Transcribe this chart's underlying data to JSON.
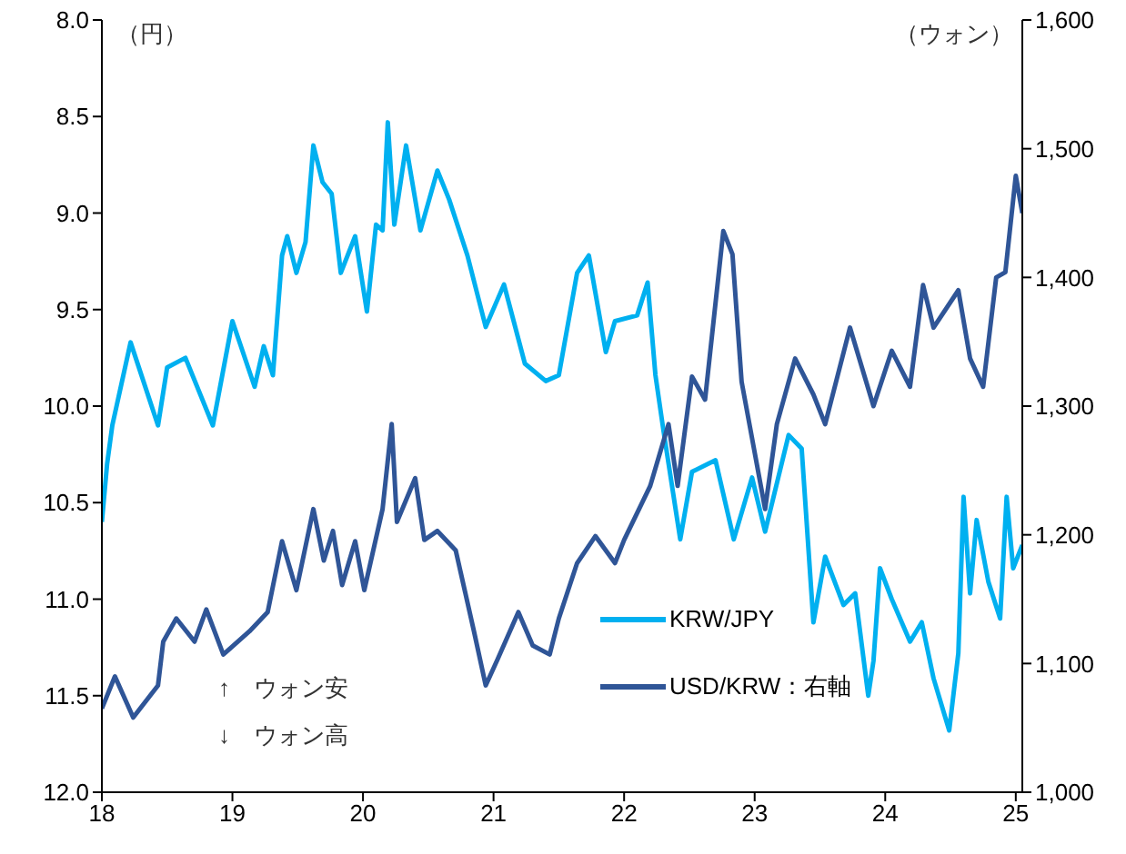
{
  "chart_data": {
    "type": "line",
    "ylabel": "（円）",
    "y2label": "（ウォン）",
    "xlim": [
      18,
      25.05
    ],
    "xticks": [
      18,
      19,
      20,
      21,
      22,
      23,
      24,
      25
    ],
    "ylim": [
      12,
      8
    ],
    "yticks": [
      {
        "value": 8,
        "label": "8.0"
      },
      {
        "value": 8.5,
        "label": "8.5"
      },
      {
        "value": 9,
        "label": "9.0"
      },
      {
        "value": 9.5,
        "label": "9.5"
      },
      {
        "value": 10,
        "label": "10.0"
      },
      {
        "value": 10.5,
        "label": "10.5"
      },
      {
        "value": 11,
        "label": "11.0"
      },
      {
        "value": 11.5,
        "label": "11.5"
      },
      {
        "value": 12,
        "label": "12.0"
      }
    ],
    "y2lim": [
      1000,
      1600
    ],
    "y2ticks": [
      {
        "value": 1000,
        "label": "1,000"
      },
      {
        "value": 1100,
        "label": "1,100"
      },
      {
        "value": 1200,
        "label": "1,200"
      },
      {
        "value": 1300,
        "label": "1,300"
      },
      {
        "value": 1400,
        "label": "1,400"
      },
      {
        "value": 1500,
        "label": "1,500"
      },
      {
        "value": 1600,
        "label": "1,600"
      }
    ],
    "legend": "bottom right",
    "marker": "none",
    "line_style": "solid",
    "annotations": [
      "↑　ウォン安",
      "↓　ウォン高"
    ],
    "series": [
      {
        "name": "KRW/JPY",
        "color": "#00b0f0",
        "x": [
          18.0,
          18.04,
          18.08,
          18.22,
          18.43,
          18.5,
          18.64,
          18.85,
          19.0,
          19.17,
          19.24,
          19.31,
          19.38,
          19.42,
          19.49,
          19.56,
          19.62,
          19.69,
          19.76,
          19.83,
          19.94,
          20.03,
          20.1,
          20.15,
          20.19,
          20.24,
          20.33,
          20.44,
          20.57,
          20.66,
          20.8,
          20.94,
          21.08,
          21.24,
          21.4,
          21.5,
          21.64,
          21.73,
          21.86,
          21.93,
          22.1,
          22.18,
          22.24,
          22.3,
          22.43,
          22.52,
          22.7,
          22.84,
          22.98,
          23.08,
          23.26,
          23.36,
          23.45,
          23.54,
          23.68,
          23.77,
          23.87,
          23.91,
          23.96,
          24.05,
          24.19,
          24.28,
          24.37,
          24.49,
          24.56,
          24.6,
          24.65,
          24.7,
          24.79,
          24.88,
          24.93,
          24.98,
          25.05
        ],
        "values": [
          10.6,
          10.3,
          10.1,
          9.67,
          10.1,
          9.8,
          9.75,
          10.1,
          9.56,
          9.9,
          9.69,
          9.84,
          9.22,
          9.12,
          9.31,
          9.15,
          8.65,
          8.84,
          8.9,
          9.31,
          9.12,
          9.51,
          9.06,
          9.09,
          8.53,
          9.06,
          8.65,
          9.09,
          8.78,
          8.93,
          9.22,
          9.59,
          9.37,
          9.78,
          9.87,
          9.84,
          9.31,
          9.22,
          9.72,
          9.56,
          9.53,
          9.36,
          9.84,
          10.12,
          10.69,
          10.34,
          10.28,
          10.69,
          10.37,
          10.65,
          10.15,
          10.22,
          11.12,
          10.78,
          11.03,
          10.97,
          11.5,
          11.32,
          10.84,
          11.0,
          11.22,
          11.12,
          11.41,
          11.68,
          11.28,
          10.47,
          10.97,
          10.59,
          10.91,
          11.1,
          10.47,
          10.84,
          10.72
        ]
      },
      {
        "name": "USD/KRW：右軸",
        "color": "#2f5597",
        "axis": "y2",
        "x": [
          18.0,
          18.1,
          18.24,
          18.43,
          18.47,
          18.57,
          18.71,
          18.8,
          18.93,
          19.13,
          19.27,
          19.38,
          19.49,
          19.62,
          19.7,
          19.77,
          19.84,
          19.94,
          20.01,
          20.15,
          20.22,
          20.26,
          20.4,
          20.47,
          20.57,
          20.71,
          20.85,
          20.94,
          21.03,
          21.19,
          21.3,
          21.43,
          21.5,
          21.64,
          21.78,
          21.93,
          22.0,
          22.2,
          22.34,
          22.41,
          22.52,
          22.62,
          22.76,
          22.83,
          22.9,
          23.08,
          23.17,
          23.31,
          23.45,
          23.54,
          23.73,
          23.91,
          24.05,
          24.19,
          24.29,
          24.37,
          24.56,
          24.65,
          24.75,
          24.85,
          24.92,
          25.0,
          25.05
        ],
        "values": [
          1065,
          1090,
          1058,
          1083,
          1117,
          1135,
          1117,
          1142,
          1107,
          1125,
          1140,
          1195,
          1157,
          1220,
          1180,
          1203,
          1161,
          1195,
          1157,
          1220,
          1286,
          1210,
          1244,
          1196,
          1203,
          1188,
          1125,
          1083,
          1103,
          1140,
          1114,
          1107,
          1135,
          1178,
          1199,
          1178,
          1196,
          1238,
          1286,
          1238,
          1323,
          1305,
          1436,
          1418,
          1319,
          1220,
          1286,
          1337,
          1309,
          1286,
          1361,
          1300,
          1343,
          1315,
          1394,
          1361,
          1390,
          1337,
          1315,
          1400,
          1404,
          1479,
          1450
        ]
      }
    ]
  }
}
